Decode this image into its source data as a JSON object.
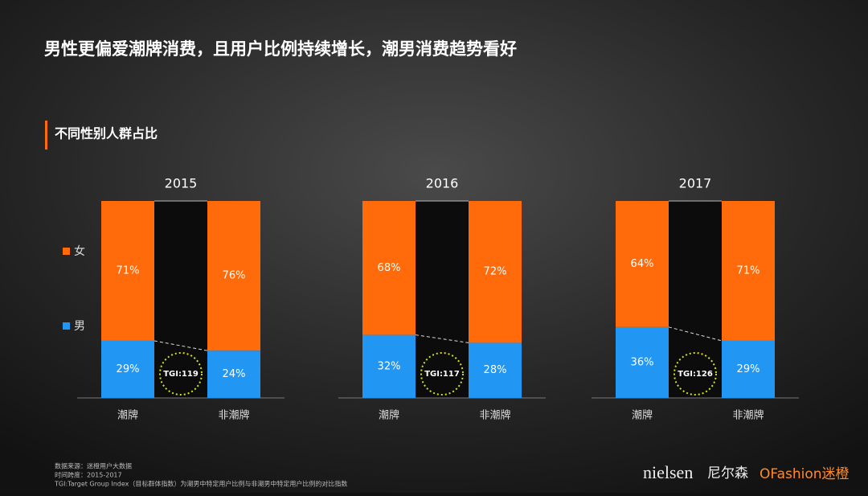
{
  "header": {
    "title": "男性更偏爱潮牌消费，且用户比例持续增长，潮男消费趋势看好",
    "subtitle": "不同性别人群占比"
  },
  "chart_data": [
    {
      "type": "bar",
      "stacked": true,
      "title": "2015",
      "categories": [
        "潮牌",
        "非潮牌"
      ],
      "ylim": [
        0,
        100
      ],
      "series": [
        {
          "name": "男",
          "color": "#2196f3",
          "values": [
            29,
            24
          ],
          "value_labels": [
            "29%",
            "24%"
          ]
        },
        {
          "name": "女",
          "color": "#ff6a0a",
          "values": [
            71,
            76
          ],
          "value_labels": [
            "71%",
            "76%"
          ]
        }
      ],
      "annotation": "TGI:119"
    },
    {
      "type": "bar",
      "stacked": true,
      "title": "2016",
      "categories": [
        "潮牌",
        "非潮牌"
      ],
      "ylim": [
        0,
        100
      ],
      "series": [
        {
          "name": "男",
          "color": "#2196f3",
          "values": [
            32,
            28
          ],
          "value_labels": [
            "32%",
            "28%"
          ]
        },
        {
          "name": "女",
          "color": "#ff6a0a",
          "values": [
            68,
            72
          ],
          "value_labels": [
            "68%",
            "72%"
          ]
        }
      ],
      "annotation": "TGI:117"
    },
    {
      "type": "bar",
      "stacked": true,
      "title": "2017",
      "categories": [
        "潮牌",
        "非潮牌"
      ],
      "ylim": [
        0,
        100
      ],
      "series": [
        {
          "name": "男",
          "color": "#2196f3",
          "values": [
            36,
            29
          ],
          "value_labels": [
            "36%",
            "29%"
          ]
        },
        {
          "name": "女",
          "color": "#ff6a0a",
          "values": [
            64,
            71
          ],
          "value_labels": [
            "64%",
            "71%"
          ]
        }
      ],
      "annotation": "TGI:126"
    }
  ],
  "footer": {
    "source": "数据来源：迷橙用户大数据",
    "period": "时间跨度：2015-2017",
    "note": "TGI:Target Group Index（目标群体指数）为潮男中特定用户比例与非潮男中特定用户比例的对比指数",
    "brands": [
      "nielsen",
      "尼尔森",
      "OFashion迷橙"
    ]
  }
}
